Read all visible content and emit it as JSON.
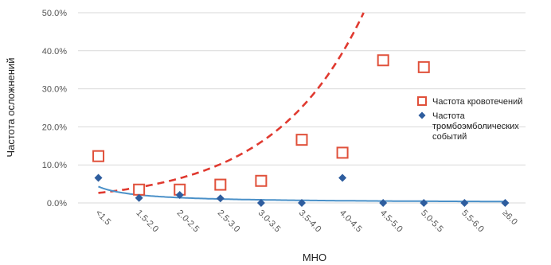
{
  "chart_data": {
    "type": "scatter",
    "xlabel": "МНО",
    "ylabel": "Частота осложнений",
    "categories": [
      "<1.5",
      "1.5-2.0",
      "2.0-2.5",
      "2.5-3.0",
      "3.0-3.5",
      "3.5-4.0",
      "4.0-4.5",
      "4.5-5.0",
      "5.0-5.5",
      "5.5-6.0",
      "≥6.0"
    ],
    "yticks": [
      "0.0%",
      "10.0%",
      "20.0%",
      "30.0%",
      "40.0%",
      "50.0%"
    ],
    "ylim": [
      0,
      50
    ],
    "grid": true,
    "legend_position": "right",
    "series": [
      {
        "name": "Частота кровотечений",
        "marker": "open-square",
        "color": "#e0503a",
        "values": [
          12.3,
          3.5,
          3.5,
          4.8,
          5.8,
          16.6,
          13.2,
          37.5,
          35.7,
          null,
          null
        ],
        "trendline": {
          "style": "dashed",
          "color": "#e03a30",
          "kind": "exponential",
          "a": 1.67,
          "b": 0.452
        }
      },
      {
        "name": "Частота\nтромбоэмболических\nсобытий",
        "marker": "diamond",
        "color": "#2e5d9e",
        "values": [
          6.6,
          1.3,
          2.1,
          1.2,
          0.0,
          0.0,
          6.6,
          0.0,
          0.0,
          0.0,
          0.0
        ],
        "trendline": {
          "style": "solid",
          "color": "#4a90c8",
          "kind": "power",
          "a": 4.3,
          "b": -1.03
        }
      }
    ]
  }
}
